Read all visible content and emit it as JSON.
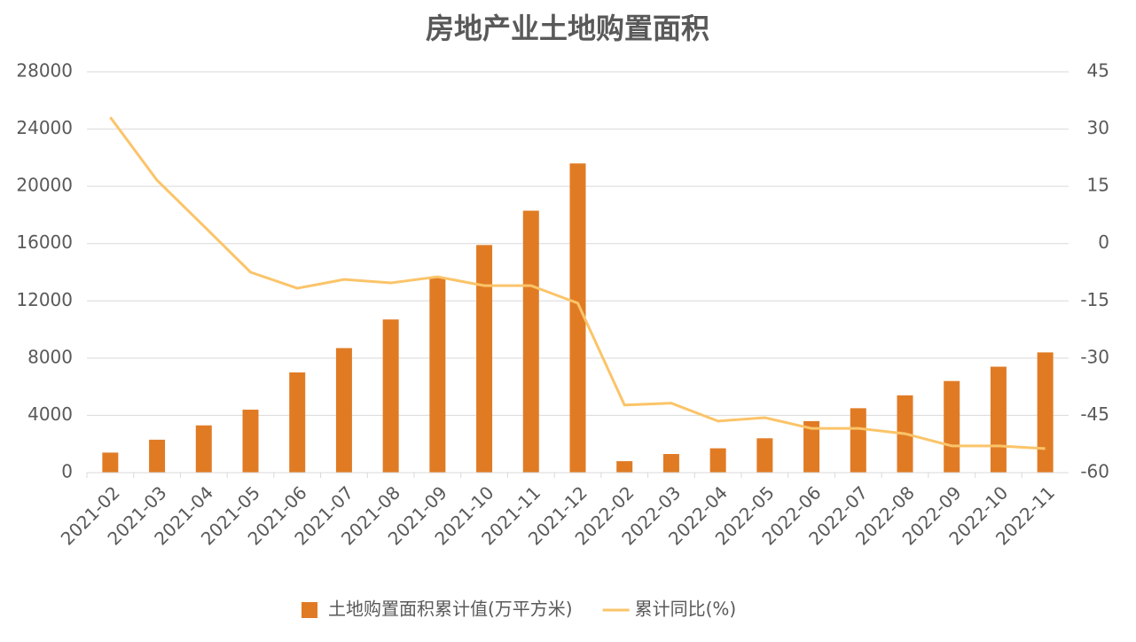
{
  "chart_data": {
    "type": "bar_line",
    "title": "房地产业土地购置面积",
    "categories": [
      "2021-02",
      "2021-03",
      "2021-04",
      "2021-05",
      "2021-06",
      "2021-07",
      "2021-08",
      "2021-09",
      "2021-10",
      "2021-11",
      "2021-12",
      "2022-02",
      "2022-03",
      "2022-04",
      "2022-05",
      "2022-06",
      "2022-07",
      "2022-08",
      "2022-09",
      "2022-10",
      "2022-11"
    ],
    "series": [
      {
        "name": "土地购置面积累计值(万平方米)",
        "type": "bar",
        "color": "#e07b24",
        "values": [
          1400,
          2300,
          3300,
          4400,
          7000,
          8700,
          10700,
          13600,
          15900,
          18300,
          21600,
          800,
          1300,
          1700,
          2400,
          3600,
          4500,
          5400,
          6400,
          7400,
          8400
        ]
      },
      {
        "name": "累计同比(%)",
        "type": "line",
        "axis": "y2",
        "color": "#fbc469",
        "values": [
          33.1,
          16.6,
          4.6,
          -7.5,
          -11.7,
          -9.4,
          -10.3,
          -8.7,
          -11.0,
          -11.0,
          -15.6,
          -42.3,
          -41.8,
          -46.5,
          -45.6,
          -48.4,
          -48.4,
          -49.8,
          -53.0,
          -53.0,
          -53.7
        ]
      }
    ],
    "ylim": [
      0,
      28000
    ],
    "yticks": [
      0,
      4000,
      8000,
      12000,
      16000,
      20000,
      24000,
      28000
    ],
    "y2lim": [
      -60,
      45
    ],
    "y2ticks": [
      -60,
      -45,
      -30,
      -15,
      0,
      15,
      30,
      45
    ],
    "grid": true,
    "legend": "bottom"
  }
}
